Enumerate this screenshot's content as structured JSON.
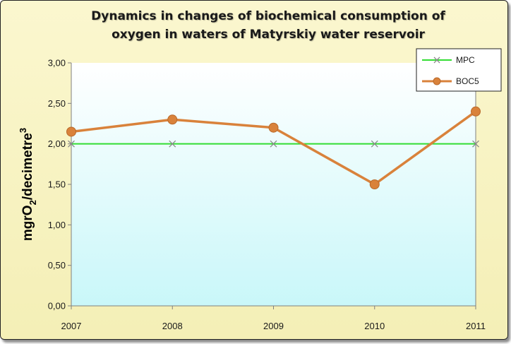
{
  "chart_data": {
    "type": "line",
    "title": [
      "Dynamics in changes of biochemical consumption of",
      "oxygen in waters of Matyrskiy water reservoir"
    ],
    "ylabel": {
      "main": "mgrO",
      "sub": "2",
      "rest": "/decimetre",
      "sup": "3"
    },
    "xlabel": "",
    "categories": [
      "2007",
      "2008",
      "2009",
      "2010",
      "2011"
    ],
    "ylim": [
      0,
      3
    ],
    "yticks": [
      "0,00",
      "0,50",
      "1,00",
      "1,50",
      "2,00",
      "2,50",
      "3,00"
    ],
    "ytick_values": [
      0,
      0.5,
      1,
      1.5,
      2,
      2.5,
      3
    ],
    "series": [
      {
        "name": "MPC",
        "values": [
          2.0,
          2.0,
          2.0,
          2.0,
          2.0
        ],
        "color": "#33dd33",
        "marker": "x"
      },
      {
        "name": "BOC5",
        "values": [
          2.15,
          2.3,
          2.2,
          1.5,
          2.4
        ],
        "color": "#d9823b",
        "marker": "circle"
      }
    ],
    "legend_placement": "top-right",
    "grid": false
  },
  "colors": {
    "plot_top": "#ffffff",
    "plot_bottom": "#c9f7f9",
    "axis": "#808080",
    "marker_x": "#8a8a8a"
  }
}
